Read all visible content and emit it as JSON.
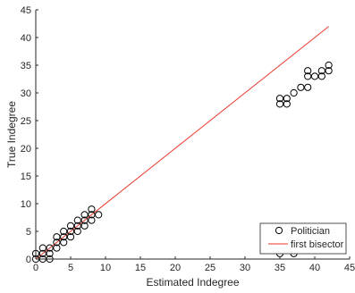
{
  "chart_data": {
    "type": "scatter",
    "xlabel": "Estimated Indegree",
    "ylabel": "True Indegree",
    "xlim": [
      0,
      45
    ],
    "ylim": [
      0,
      45
    ],
    "xticks": [
      0,
      5,
      10,
      15,
      20,
      25,
      30,
      35,
      40,
      45
    ],
    "yticks": [
      0,
      5,
      10,
      15,
      20,
      25,
      30,
      35,
      40,
      45
    ],
    "grid": false,
    "legend_position": "bottom-right",
    "series": [
      {
        "name": "Politician",
        "kind": "scatter",
        "marker": "open-circle",
        "color": "#000000",
        "points": [
          [
            0,
            0
          ],
          [
            0,
            1
          ],
          [
            1,
            0
          ],
          [
            1,
            1
          ],
          [
            1,
            2
          ],
          [
            2,
            0
          ],
          [
            2,
            1
          ],
          [
            2,
            2
          ],
          [
            3,
            2
          ],
          [
            3,
            3
          ],
          [
            3,
            4
          ],
          [
            4,
            3
          ],
          [
            4,
            4
          ],
          [
            4,
            5
          ],
          [
            5,
            4
          ],
          [
            5,
            5
          ],
          [
            5,
            6
          ],
          [
            6,
            5
          ],
          [
            6,
            6
          ],
          [
            6,
            7
          ],
          [
            7,
            6
          ],
          [
            7,
            7
          ],
          [
            7,
            8
          ],
          [
            8,
            7
          ],
          [
            8,
            8
          ],
          [
            8,
            9
          ],
          [
            9,
            8
          ],
          [
            35,
            1
          ],
          [
            35,
            28
          ],
          [
            35,
            29
          ],
          [
            36,
            28
          ],
          [
            36,
            29
          ],
          [
            37,
            1
          ],
          [
            37,
            30
          ],
          [
            38,
            31
          ],
          [
            39,
            31
          ],
          [
            39,
            33
          ],
          [
            39,
            34
          ],
          [
            40,
            33
          ],
          [
            41,
            33
          ],
          [
            41,
            34
          ],
          [
            42,
            34
          ],
          [
            42,
            35
          ]
        ]
      },
      {
        "name": "first bisector",
        "kind": "line",
        "color": "#e8372c",
        "x": [
          0,
          42
        ],
        "y": [
          0,
          42
        ]
      }
    ]
  }
}
